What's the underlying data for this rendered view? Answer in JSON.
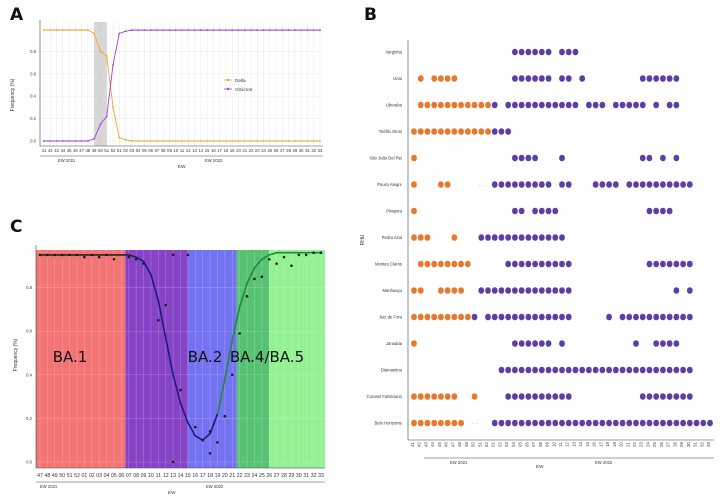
{
  "colors": {
    "delta": "#f2a52a",
    "omicron": "#a23de0",
    "dot_orange": "#e8782a",
    "dot_purple": "#5b3fa6",
    "ba1": "#f26d6d",
    "ba1_purple": "#7a2fbf",
    "ba2": "#6b6bf0",
    "ba45_dark": "#4fbf6b",
    "ba45_light": "#8ef08e",
    "fit_black": "#222222",
    "fit_blue": "#1a1a80",
    "fit_green": "#1f8a3a"
  },
  "chart_data": [
    {
      "id": "A",
      "type": "line",
      "panel_label": "A",
      "title": "",
      "ylabel": "Frequency (%)",
      "xlabel": "EW",
      "ylim": [
        0,
        1
      ],
      "yticks": [
        "0.0",
        "0.2",
        "0.4",
        "0.6",
        "0.8"
      ],
      "year_labels": [
        "EW 2021",
        "EW 2022"
      ],
      "legend": [
        "Delta",
        "Omicron"
      ],
      "categories": [
        "41",
        "42",
        "43",
        "44",
        "45",
        "46",
        "47",
        "48",
        "49",
        "50",
        "51",
        "52",
        "01",
        "02",
        "03",
        "04",
        "05",
        "06",
        "07",
        "08",
        "09",
        "10",
        "11",
        "12",
        "13",
        "14",
        "15",
        "16",
        "17",
        "18",
        "19",
        "20",
        "21",
        "22",
        "23",
        "24",
        "25",
        "26",
        "27",
        "28",
        "29",
        "30",
        "31",
        "32",
        "33"
      ],
      "series": [
        {
          "name": "Delta",
          "values": [
            0.99,
            0.99,
            0.99,
            0.99,
            0.99,
            0.99,
            0.99,
            0.99,
            0.96,
            0.8,
            0.76,
            0.3,
            0.03,
            0.01,
            0.0,
            0.0,
            0.0,
            0.0,
            0.0,
            0.0,
            0.0,
            0.0,
            0.0,
            0.0,
            0.0,
            0.0,
            0.0,
            0.0,
            0.0,
            0.0,
            0.0,
            0.0,
            0.0,
            0.0,
            0.0,
            0.0,
            0.0,
            0.0,
            0.0,
            0.0,
            0.0,
            0.0,
            0.0,
            0.0,
            0.0
          ]
        },
        {
          "name": "Omicron",
          "values": [
            0.0,
            0.0,
            0.0,
            0.0,
            0.0,
            0.0,
            0.0,
            0.0,
            0.02,
            0.15,
            0.22,
            0.68,
            0.96,
            0.98,
            0.99,
            0.99,
            0.99,
            0.99,
            0.99,
            0.99,
            0.99,
            0.99,
            0.99,
            0.99,
            0.99,
            0.99,
            0.99,
            0.99,
            0.99,
            0.99,
            0.99,
            0.99,
            0.99,
            0.99,
            0.99,
            0.99,
            0.99,
            0.99,
            0.99,
            0.99,
            0.99,
            0.99,
            0.99,
            0.99,
            0.99
          ]
        }
      ],
      "shaded_range": [
        "49",
        "51"
      ]
    },
    {
      "id": "B",
      "type": "scatter",
      "panel_label": "B",
      "ylabel": "RHU",
      "xlabel": "EW",
      "year_labels": [
        "EW 2021",
        "EW 2022"
      ],
      "categories": [
        "41",
        "42",
        "43",
        "44",
        "45",
        "46",
        "47",
        "48",
        "49",
        "50",
        "51",
        "52",
        "01",
        "02",
        "03",
        "04",
        "05",
        "06",
        "07",
        "08",
        "09",
        "10",
        "11",
        "12",
        "13",
        "14",
        "15",
        "16",
        "17",
        "18",
        "19",
        "20",
        "21",
        "22",
        "23",
        "24",
        "25",
        "26",
        "27",
        "28",
        "29",
        "30",
        "31",
        "32",
        "33"
      ],
      "gap_marker": "· · ·",
      "rows": [
        {
          "name": "Varginha",
          "delta": [],
          "omicron": [
            "04",
            "05",
            "06",
            "07",
            "08",
            "09",
            "11",
            "12",
            "13"
          ]
        },
        {
          "name": "Unaí",
          "delta": [
            "42",
            "44",
            "45",
            "46",
            "47"
          ],
          "omicron": [
            "04",
            "05",
            "06",
            "07",
            "08",
            "09",
            "11",
            "12",
            "14",
            "23",
            "24",
            "25",
            "26",
            "27",
            "28"
          ]
        },
        {
          "name": "Uberaba",
          "delta": [
            "42",
            "43",
            "44",
            "45",
            "46",
            "47",
            "48",
            "49",
            "50",
            "51",
            "52"
          ],
          "omicron": [
            "01",
            "03",
            "04",
            "05",
            "06",
            "07",
            "08",
            "09",
            "10",
            "11",
            "12",
            "13",
            "15",
            "16",
            "17",
            "19",
            "20",
            "21",
            "22",
            "23",
            "25",
            "27",
            "28"
          ]
        },
        {
          "name": "Teófilo Otoni",
          "delta": [
            "41",
            "42",
            "43",
            "44",
            "45",
            "46",
            "47",
            "48",
            "49",
            "50",
            "51",
            "52"
          ],
          "omicron": [
            "01",
            "02",
            "03"
          ]
        },
        {
          "name": "São João Del Rei",
          "delta": [
            "41"
          ],
          "omicron": [
            "04",
            "05",
            "06",
            "07",
            "11",
            "23",
            "24",
            "26",
            "28"
          ]
        },
        {
          "name": "Pouso Alegre",
          "delta": [
            "41",
            "45",
            "46"
          ],
          "omicron": [
            "01",
            "02",
            "03",
            "04",
            "05",
            "06",
            "07",
            "08",
            "09",
            "11",
            "12",
            "16",
            "17",
            "18",
            "19",
            "21",
            "22",
            "23",
            "24",
            "25",
            "26",
            "27",
            "28",
            "29",
            "30"
          ]
        },
        {
          "name": "Pirapora",
          "delta": [
            "41"
          ],
          "omicron": [
            "04",
            "05",
            "07",
            "08",
            "09",
            "10",
            "24",
            "25",
            "26",
            "27"
          ]
        },
        {
          "name": "Pedra Azul",
          "delta": [
            "41",
            "42",
            "43",
            "47"
          ],
          "omicron": [
            "51",
            "52",
            "01",
            "02",
            "03",
            "04",
            "05",
            "06",
            "07",
            "08",
            "09",
            "10",
            "11"
          ]
        },
        {
          "name": "Montes Claros",
          "delta": [
            "42",
            "43",
            "44",
            "45",
            "46",
            "47",
            "48",
            "49"
          ],
          "omicron": [
            "03",
            "04",
            "05",
            "06",
            "07",
            "08",
            "09",
            "10",
            "11",
            "12",
            "24",
            "25",
            "26",
            "27",
            "28",
            "29",
            "30"
          ]
        },
        {
          "name": "Manhuaçu",
          "delta": [
            "41",
            "42",
            "45",
            "46",
            "47",
            "48"
          ],
          "omicron": [
            "51",
            "52",
            "01",
            "02",
            "03",
            "04",
            "05",
            "06",
            "07",
            "08",
            "09",
            "10",
            "11",
            "12",
            "28",
            "30"
          ]
        },
        {
          "name": "Juiz de Fora",
          "delta": [
            "41",
            "42",
            "43",
            "44",
            "45",
            "46",
            "47",
            "48",
            "49"
          ],
          "omicron": [
            "50",
            "52",
            "01",
            "02",
            "03",
            "04",
            "05",
            "06",
            "07",
            "08",
            "09",
            "10",
            "11",
            "12",
            "18",
            "20",
            "21",
            "22",
            "23",
            "24",
            "25",
            "26",
            "27",
            "28",
            "29",
            "30"
          ]
        },
        {
          "name": "Januária",
          "delta": [
            "41"
          ],
          "omicron": [
            "04",
            "05",
            "06",
            "07",
            "08",
            "09",
            "11",
            "22",
            "25",
            "26",
            "27",
            "28"
          ]
        },
        {
          "name": "Diamantina",
          "delta": [],
          "omicron": [
            "02",
            "03",
            "04",
            "05",
            "06",
            "07",
            "08",
            "09",
            "10",
            "11",
            "12",
            "13",
            "14",
            "15",
            "16",
            "17",
            "18",
            "19",
            "20",
            "21",
            "22",
            "23",
            "24",
            "25",
            "26",
            "27",
            "28",
            "29",
            "30"
          ]
        },
        {
          "name": "Coronel Fabriciano",
          "delta": [
            "41",
            "42",
            "43",
            "44",
            "45",
            "46",
            "47",
            "50"
          ],
          "omicron": [
            "03",
            "04",
            "05",
            "06",
            "07",
            "08",
            "09",
            "10",
            "11",
            "12",
            "23",
            "24",
            "25",
            "26",
            "27",
            "28",
            "29",
            "30"
          ]
        },
        {
          "name": "Belo Horizonte",
          "delta": [
            "41",
            "42",
            "43",
            "44",
            "45",
            "46",
            "47",
            "48"
          ],
          "omicron": [
            "01",
            "02",
            "03",
            "04",
            "05",
            "06",
            "07",
            "08",
            "09",
            "10",
            "11",
            "12",
            "13",
            "14",
            "15",
            "16",
            "17",
            "18",
            "19",
            "20",
            "21",
            "22",
            "23",
            "24",
            "25",
            "26",
            "27",
            "28",
            "29",
            "30",
            "31",
            "32",
            "33"
          ]
        }
      ]
    },
    {
      "id": "C",
      "type": "scatter",
      "panel_label": "C",
      "ylabel": "Frequency (%)",
      "xlabel": "EW",
      "ylim": [
        0,
        1
      ],
      "yticks": [
        "0.0",
        "0.2",
        "0.4",
        "0.6",
        "0.8"
      ],
      "year_labels": [
        "EW 2021",
        "EW 2022"
      ],
      "categories": [
        "47",
        "48",
        "49",
        "50",
        "51",
        "52",
        "01",
        "02",
        "03",
        "04",
        "05",
        "06",
        "07",
        "08",
        "09",
        "10",
        "11",
        "12",
        "13",
        "14",
        "15",
        "16",
        "17",
        "18",
        "19",
        "20",
        "21",
        "22",
        "23",
        "24",
        "25",
        "26",
        "27",
        "28",
        "29",
        "30",
        "31",
        "32",
        "33"
      ],
      "regions": [
        {
          "label": "BA.1",
          "from": "47",
          "to": "06"
        },
        {
          "label": "BA.2",
          "from": "15",
          "to": "21"
        },
        {
          "label": "BA.4/BA.5",
          "from": "22",
          "to": "33"
        }
      ],
      "points": [
        {
          "x": "47",
          "y": 0.95
        },
        {
          "x": "48",
          "y": 0.95
        },
        {
          "x": "49",
          "y": 0.95
        },
        {
          "x": "50",
          "y": 0.95
        },
        {
          "x": "51",
          "y": 0.95
        },
        {
          "x": "52",
          "y": 0.95
        },
        {
          "x": "01",
          "y": 0.94
        },
        {
          "x": "02",
          "y": 0.95
        },
        {
          "x": "03",
          "y": 0.94
        },
        {
          "x": "04",
          "y": 0.95
        },
        {
          "x": "05",
          "y": 0.93
        },
        {
          "x": "07",
          "y": 0.94
        },
        {
          "x": "08",
          "y": 0.93
        },
        {
          "x": "09",
          "y": 0.91
        },
        {
          "x": "11",
          "y": 0.65
        },
        {
          "x": "12",
          "y": 0.72
        },
        {
          "x": "13",
          "y": 0.95
        },
        {
          "x": "13",
          "y": 0.0
        },
        {
          "x": "14",
          "y": 0.33
        },
        {
          "x": "15",
          "y": 0.95
        },
        {
          "x": "16",
          "y": 0.16
        },
        {
          "x": "17",
          "y": 0.1
        },
        {
          "x": "18",
          "y": 0.04
        },
        {
          "x": "18",
          "y": 0.14
        },
        {
          "x": "19",
          "y": 0.09
        },
        {
          "x": "20",
          "y": 0.21
        },
        {
          "x": "21",
          "y": 0.4
        },
        {
          "x": "22",
          "y": 0.59
        },
        {
          "x": "23",
          "y": 0.76
        },
        {
          "x": "24",
          "y": 0.84
        },
        {
          "x": "25",
          "y": 0.85
        },
        {
          "x": "26",
          "y": 0.93
        },
        {
          "x": "27",
          "y": 0.91
        },
        {
          "x": "28",
          "y": 0.94
        },
        {
          "x": "29",
          "y": 0.9
        },
        {
          "x": "30",
          "y": 0.95
        },
        {
          "x": "31",
          "y": 0.95
        },
        {
          "x": "32",
          "y": 0.96
        },
        {
          "x": "33",
          "y": 0.96
        }
      ],
      "fit": [
        0.95,
        0.95,
        0.95,
        0.95,
        0.95,
        0.95,
        0.95,
        0.95,
        0.95,
        0.95,
        0.95,
        0.95,
        0.95,
        0.94,
        0.92,
        0.86,
        0.74,
        0.57,
        0.4,
        0.27,
        0.18,
        0.12,
        0.1,
        0.13,
        0.22,
        0.38,
        0.56,
        0.71,
        0.82,
        0.89,
        0.93,
        0.95,
        0.96,
        0.96,
        0.96,
        0.96,
        0.96,
        0.96,
        0.96
      ]
    }
  ]
}
